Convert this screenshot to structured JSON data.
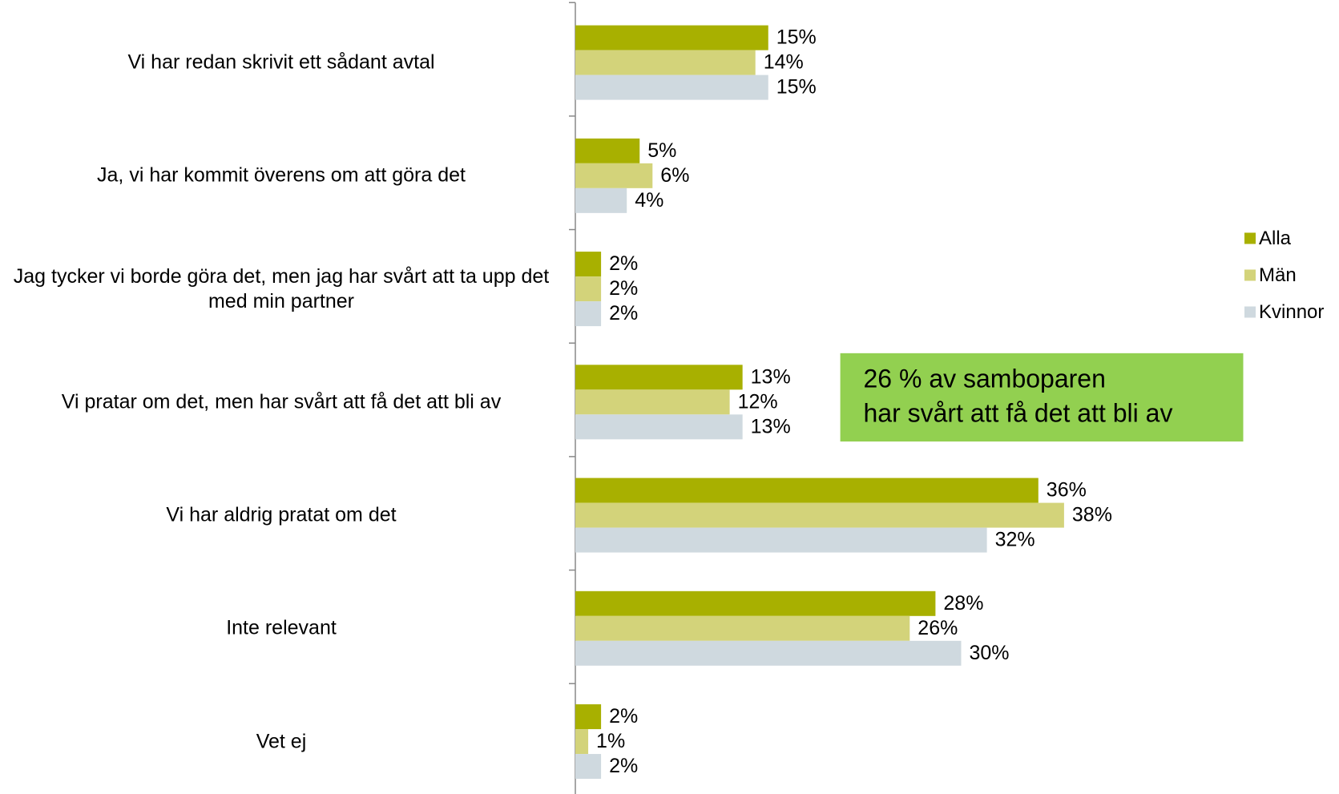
{
  "chart_data": {
    "type": "bar",
    "orientation": "horizontal",
    "categories": [
      "Vi har redan skrivit ett sådant avtal",
      "Ja, vi har kommit överens om att göra det",
      "Jag tycker vi borde göra det, men jag har svårt att ta upp det med min partner",
      "Vi pratar om det, men har svårt att få det att bli av",
      "Vi har aldrig pratat om det",
      "Inte relevant",
      "Vet ej"
    ],
    "series": [
      {
        "name": "Alla",
        "color": "#a8b000",
        "values": [
          15,
          5,
          2,
          13,
          36,
          28,
          2
        ],
        "value_labels": [
          "15%",
          "5%",
          "2%",
          "13%",
          "36%",
          "28%",
          "2%"
        ]
      },
      {
        "name": "Män",
        "color": "#d3d37a",
        "values": [
          14,
          6,
          2,
          12,
          38,
          26,
          1
        ],
        "value_labels": [
          "14%",
          "6%",
          "2%",
          "12%",
          "38%",
          "26%",
          "1%"
        ]
      },
      {
        "name": "Kvinnor",
        "color": "#cfd9df",
        "values": [
          15,
          4,
          2,
          13,
          32,
          30,
          2
        ],
        "value_labels": [
          "15%",
          "4%",
          "2%",
          "13%",
          "32%",
          "30%",
          "2%"
        ]
      }
    ],
    "xlim": [
      0,
      40
    ],
    "legend": "right",
    "annotation": [
      "26 % av samboparen",
      "har svårt att få det att bli av"
    ],
    "annotation_color": "#92d050"
  }
}
